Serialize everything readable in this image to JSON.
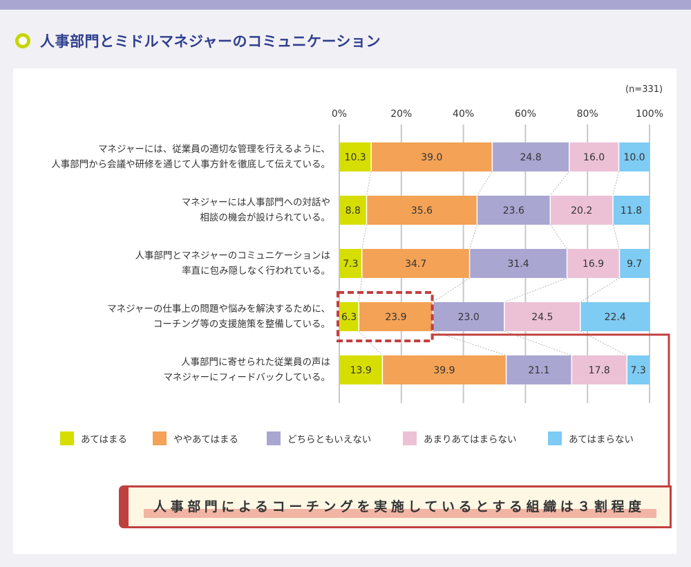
{
  "title": "人事部門とミドルマネジャーのコミュニケーション",
  "n_label": "(n=331)",
  "callout": "人事部門によるコーチングを実施しているとする組織は３割程度",
  "colors": {
    "band": "#a9a6d2",
    "title": "#2f3f8f",
    "highlight": "#c0403f",
    "series": [
      "#d6de00",
      "#f3a256",
      "#a9a6d2",
      "#ecc1d6",
      "#7ecbf3"
    ]
  },
  "chart_data": {
    "type": "bar",
    "orientation": "horizontal",
    "stacked": true,
    "percent": true,
    "xlim": [
      0,
      100
    ],
    "xticks": [
      "0%",
      "20%",
      "40%",
      "60%",
      "80%",
      "100%"
    ],
    "categories": [
      [
        "マネジャーには、従業員の適切な管理を行えるように、",
        "人事部門から会議や研修を通じて人事方針を徹底して伝えている。"
      ],
      [
        "マネジャーには人事部門への対話や",
        "相談の機会が設けられている。"
      ],
      [
        "人事部門とマネジャーのコミュニケーションは",
        "率直に包み隠しなく行われている。"
      ],
      [
        "マネジャーの仕事上の問題や悩みを解決するために、",
        "コーチング等の支援施策を整備している。"
      ],
      [
        "人事部門に寄せられた従業員の声は",
        "マネジャーにフィードバックしている。"
      ]
    ],
    "series": [
      {
        "name": "あてはまる",
        "values": [
          10.3,
          8.8,
          7.3,
          6.3,
          13.9
        ]
      },
      {
        "name": "ややあてはまる",
        "values": [
          39.0,
          35.6,
          34.7,
          23.9,
          39.9
        ]
      },
      {
        "name": "どちらともいえない",
        "values": [
          24.8,
          23.6,
          31.4,
          23.0,
          21.1
        ]
      },
      {
        "name": "あまりあてはまらない",
        "values": [
          16.0,
          20.2,
          16.9,
          24.5,
          17.8
        ]
      },
      {
        "name": "あてはまらない",
        "values": [
          10.0,
          11.8,
          9.7,
          22.4,
          7.3
        ]
      }
    ],
    "highlight_category_index": 3
  }
}
